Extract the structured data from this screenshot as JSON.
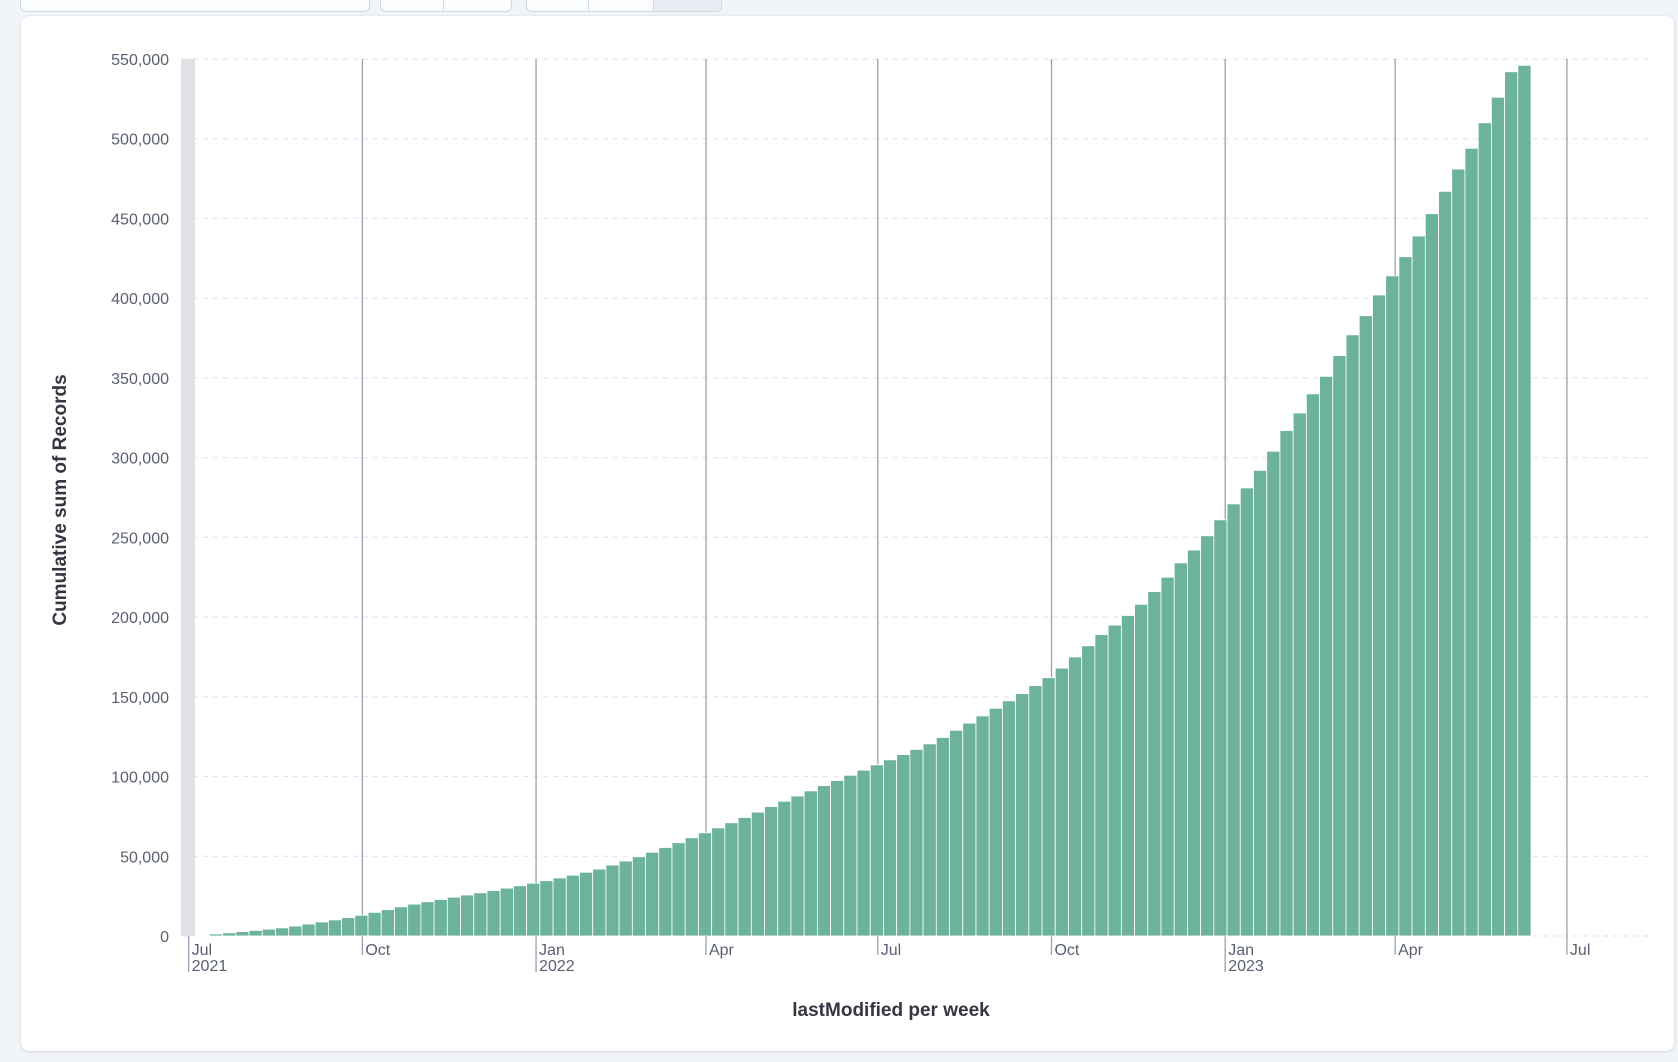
{
  "colors": {
    "bar": "#6db39a",
    "bar_stroke": "#ffffff",
    "grid": "#e4e7ec",
    "axis": "#98a2b3",
    "text": "#5a6070",
    "title": "#343741",
    "panel": "#ffffff",
    "page": "#f1f4f9",
    "domain_marker": "#dfe1e6"
  },
  "chart_data": {
    "type": "bar",
    "xlabel": "lastModified per week",
    "ylabel": "Cumulative sum of Records",
    "ylim": [
      0,
      550000
    ],
    "yticks": [
      {
        "value": 0,
        "label": "0"
      },
      {
        "value": 50000,
        "label": "50,000"
      },
      {
        "value": 100000,
        "label": "100,000"
      },
      {
        "value": 150000,
        "label": "150,000"
      },
      {
        "value": 200000,
        "label": "200,000"
      },
      {
        "value": 250000,
        "label": "250,000"
      },
      {
        "value": 300000,
        "label": "300,000"
      },
      {
        "value": 350000,
        "label": "350,000"
      },
      {
        "value": 400000,
        "label": "400,000"
      },
      {
        "value": 450000,
        "label": "450,000"
      },
      {
        "value": 500000,
        "label": "500,000"
      },
      {
        "value": 550000,
        "label": "550,000"
      }
    ],
    "xticks": [
      {
        "date": "2021-07-01",
        "label": "Jul",
        "sublabel": "2021"
      },
      {
        "date": "2021-10-01",
        "label": "Oct",
        "sublabel": ""
      },
      {
        "date": "2022-01-01",
        "label": "Jan",
        "sublabel": "2022"
      },
      {
        "date": "2022-04-01",
        "label": "Apr",
        "sublabel": ""
      },
      {
        "date": "2022-07-01",
        "label": "Jul",
        "sublabel": ""
      },
      {
        "date": "2022-10-01",
        "label": "Oct",
        "sublabel": ""
      },
      {
        "date": "2023-01-01",
        "label": "Jan",
        "sublabel": "2023"
      },
      {
        "date": "2023-04-01",
        "label": "Apr",
        "sublabel": ""
      },
      {
        "date": "2023-07-01",
        "label": "Jul",
        "sublabel": ""
      }
    ],
    "x_domain": [
      "2021-06-28",
      "2023-08-14"
    ],
    "week_start": "2021-07-05",
    "values": [
      500,
      1300,
      2000,
      2800,
      3500,
      4300,
      5100,
      6200,
      7500,
      8800,
      10100,
      11500,
      13000,
      14800,
      16500,
      18300,
      20000,
      21500,
      22900,
      24300,
      25700,
      27100,
      28500,
      30000,
      31500,
      33100,
      34700,
      36400,
      38100,
      40000,
      42000,
      44500,
      47000,
      49700,
      52500,
      55500,
      58500,
      61600,
      64700,
      67800,
      71000,
      74300,
      77700,
      81200,
      84500,
      87800,
      91000,
      94300,
      97500,
      100800,
      104000,
      107300,
      110500,
      113800,
      117000,
      120500,
      124500,
      129000,
      133500,
      138000,
      142800,
      147500,
      152000,
      157000,
      162000,
      168000,
      175000,
      182000,
      189000,
      195000,
      201000,
      208000,
      216000,
      225000,
      234000,
      242000,
      251000,
      261000,
      271000,
      281000,
      292000,
      304000,
      317000,
      328000,
      340000,
      351000,
      364000,
      377000,
      389000,
      402000,
      414000,
      426000,
      439000,
      453000,
      467000,
      481000,
      494000,
      510000,
      526000,
      542000,
      546000
    ]
  }
}
